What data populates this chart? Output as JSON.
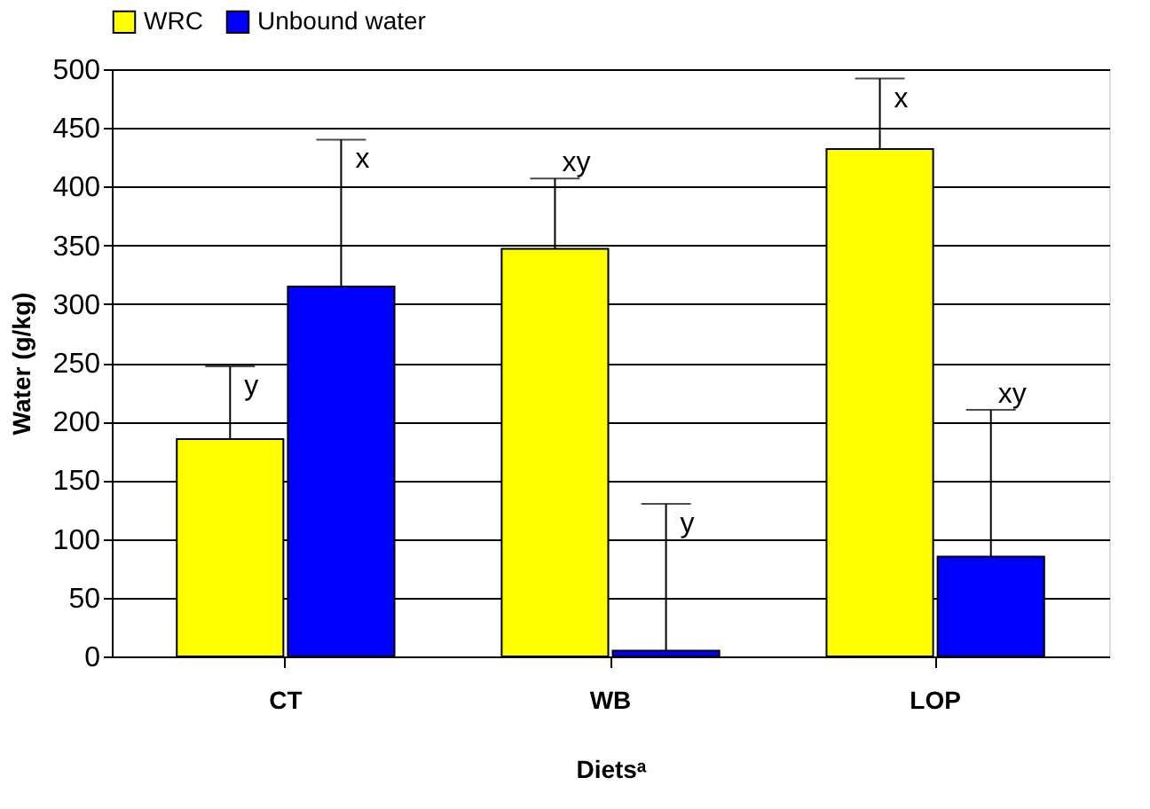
{
  "chart_data": {
    "type": "bar",
    "xlabel": "Dietsᵃ",
    "ylabel": "Water (g/kg)",
    "categories": [
      "CT",
      "WB",
      "LOP"
    ],
    "series": [
      {
        "name": "WRC",
        "color": "#ffff00",
        "values": [
          185,
          347,
          432
        ],
        "errors": [
          [
            185,
            247
          ],
          [
            347,
            407
          ],
          [
            432,
            492
          ]
        ]
      },
      {
        "name": "Unbound water",
        "color": "#0000ff",
        "values": [
          315,
          5,
          85
        ],
        "errors": [
          [
            315,
            440
          ],
          [
            5,
            130
          ],
          [
            85,
            210
          ]
        ]
      }
    ],
    "ylim": [
      0,
      500
    ],
    "yticks": [
      0,
      50,
      100,
      150,
      200,
      250,
      300,
      350,
      400,
      450,
      500
    ],
    "grid": "y",
    "legend": "top",
    "annotations": [
      "y",
      "x",
      "xy",
      "y",
      "x",
      "xy"
    ]
  }
}
